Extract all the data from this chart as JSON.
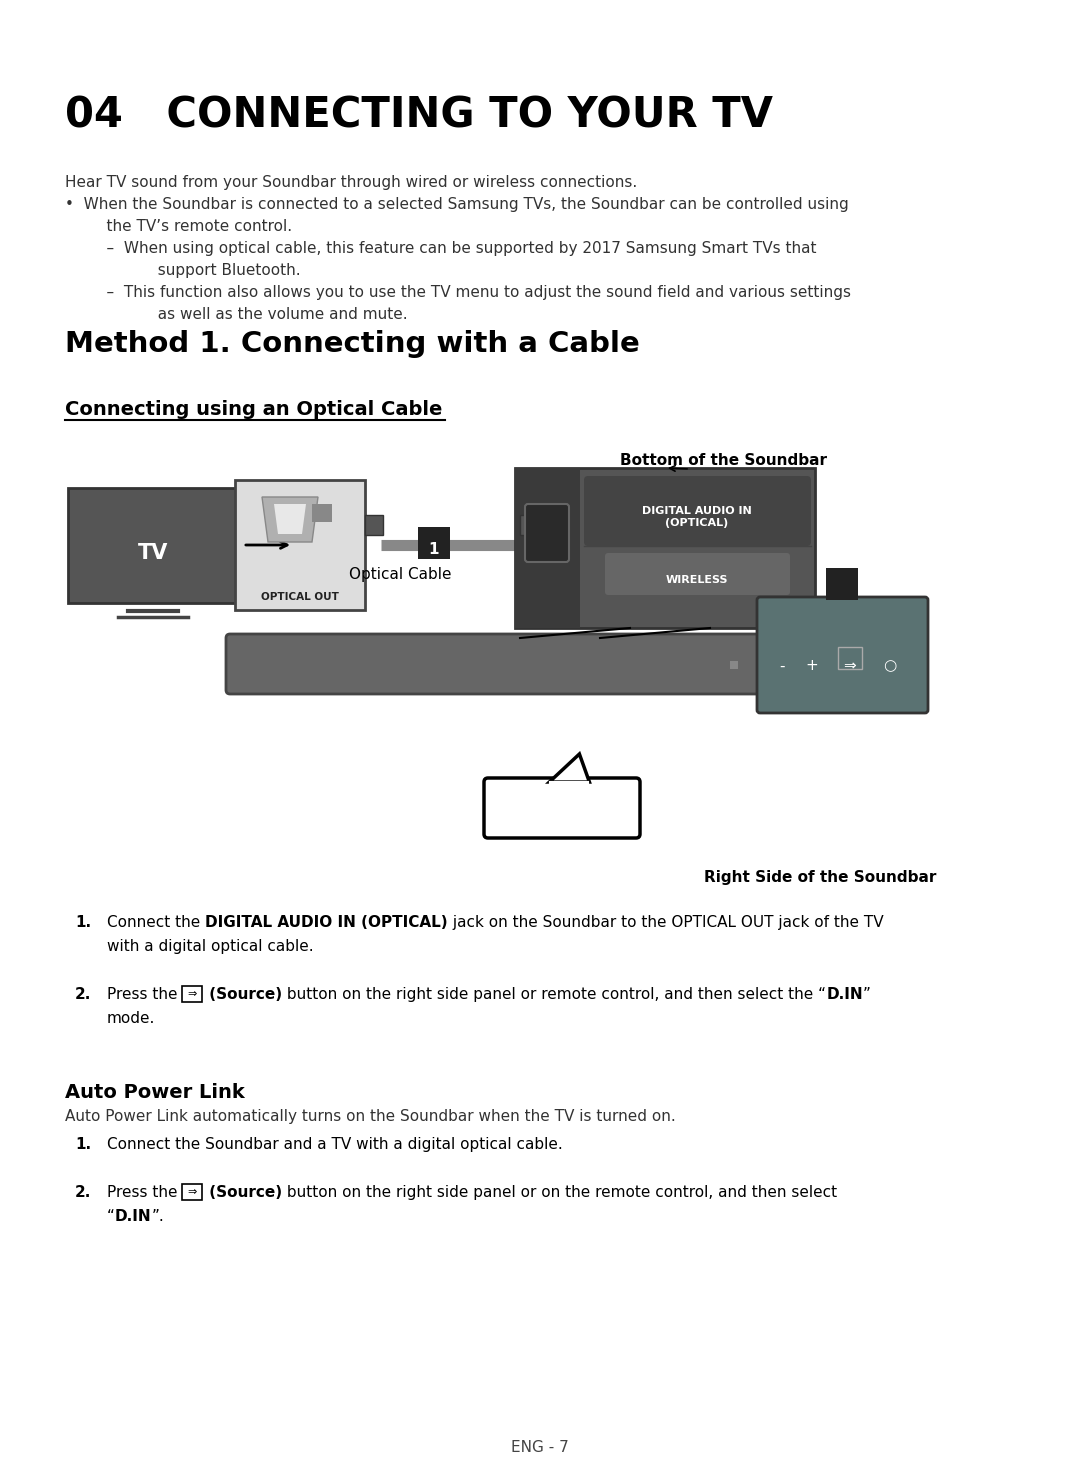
{
  "bg_color": "#ffffff",
  "title": "04   CONNECTING TO YOUR TV",
  "body_lines": [
    "Hear TV sound from your Soundbar through wired or wireless connections.",
    "•  When the Soundbar is connected to a selected Samsung TVs, the Soundbar can be controlled using",
    "    the TV’s remote control.",
    "    –  When using optical cable, this feature can be supported by 2017 Samsung Smart TVs that",
    "          support Bluetooth.",
    "    –  This function also allows you to use the TV menu to adjust the sound field and various settings",
    "          as well as the volume and mute."
  ],
  "method_title": "Method 1. Connecting with a Cable",
  "section_title": "Connecting using an Optical Cable",
  "bottom_label": "Bottom of the Soundbar",
  "right_label": "Right Side of the Soundbar",
  "optical_cable_label": "Optical Cable",
  "inst1_a": "Connect the ",
  "inst1_b": "DIGITAL AUDIO IN (OPTICAL)",
  "inst1_c": " jack on the Soundbar to the OPTICAL OUT jack of the TV",
  "inst1_line2": "with a digital optical cable.",
  "inst2_a": "Press the ",
  "inst2_b": " (Source)",
  "inst2_c": " button on the right side panel or remote control, and then select the “",
  "inst2_d": "D.IN",
  "inst2_e": "”",
  "inst2_line2": "mode.",
  "auto_title": "Auto Power Link",
  "auto_desc": "Auto Power Link automatically turns on the Soundbar when the TV is turned on.",
  "auto1": "Connect the Soundbar and a TV with a digital optical cable.",
  "auto2_a": "Press the ",
  "auto2_b": " (Source)",
  "auto2_c": " button on the right side panel or on the remote control, and then select",
  "auto2_line2a": "“",
  "auto2_line2b": "D.IN",
  "auto2_line2c": "”.",
  "footer": "ENG - 7",
  "colors": {
    "dark_gray": "#4a4a4a",
    "mid_gray": "#666666",
    "light_gray": "#999999",
    "panel_bg": "#555555",
    "panel_dark": "#3a3a3a",
    "tv_bg": "#555555",
    "optical_box_bg": "#e0e0e0",
    "right_panel_bg": "#5a7070",
    "text_dark": "#222222",
    "text_mid": "#444444",
    "badge_bg": "#222222",
    "wireless_btn": "#777777",
    "digital_audio_btn": "#555555"
  }
}
